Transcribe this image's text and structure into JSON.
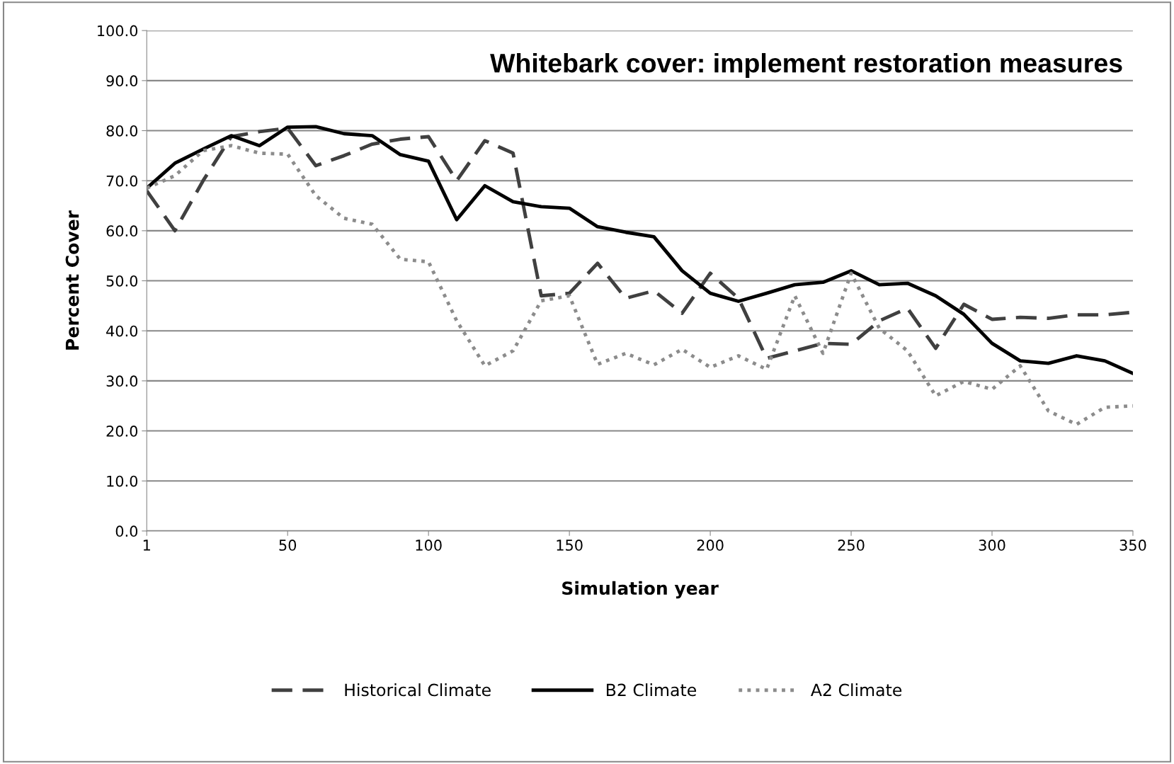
{
  "chart_data": {
    "type": "line",
    "title": "Whitebark cover: implement restoration measures",
    "xlabel": "Simulation year",
    "ylabel": "Percent Cover",
    "categories": [
      "1",
      null,
      null,
      null,
      null,
      "50",
      null,
      null,
      null,
      null,
      "100",
      null,
      null,
      null,
      null,
      "150",
      null,
      null,
      null,
      null,
      "200",
      null,
      null,
      null,
      null,
      "250",
      null,
      null,
      null,
      null,
      "300",
      null,
      null,
      null,
      null,
      "350"
    ],
    "ylim": [
      0,
      100
    ],
    "yticks": [
      {
        "value": 0,
        "label": "0.0"
      },
      {
        "value": 10,
        "label": "10.0"
      },
      {
        "value": 20,
        "label": "20.0"
      },
      {
        "value": 30,
        "label": "30.0"
      },
      {
        "value": 40,
        "label": "40.0"
      },
      {
        "value": 50,
        "label": "50.0"
      },
      {
        "value": 60,
        "label": "60.0"
      },
      {
        "value": 70,
        "label": "70.0"
      },
      {
        "value": 80,
        "label": "80.0"
      },
      {
        "value": 90,
        "label": "90.0"
      },
      {
        "value": 100,
        "label": "100.0"
      }
    ],
    "grid": "y",
    "legend": "bottom",
    "marker": "none",
    "series": [
      {
        "name": "Historical Climate",
        "color": "#404040",
        "line_style": "dashed",
        "values": [
          68,
          60,
          70,
          78.8,
          79.8,
          80.5,
          73,
          75,
          77.3,
          78.3,
          78.8,
          70,
          78,
          75.5,
          47,
          47.5,
          53.5,
          46.5,
          48,
          43.5,
          51.5,
          46.5,
          34.5,
          36,
          37.5,
          37.3,
          42,
          44.5,
          36.5,
          45.3,
          42.3,
          42.7,
          42.5,
          43.2,
          43.2,
          43.7
        ]
      },
      {
        "name": "B2 Climate",
        "color": "#000000",
        "line_style": "solid",
        "values": [
          68.5,
          73.5,
          76.3,
          79,
          77,
          80.7,
          80.8,
          79.4,
          79,
          75.2,
          73.9,
          62.2,
          69,
          65.8,
          64.8,
          64.5,
          60.8,
          59.7,
          58.8,
          52,
          47.5,
          45.9,
          47.5,
          49.2,
          49.7,
          52,
          49.2,
          49.5,
          47,
          43.3,
          37.5,
          34,
          33.5,
          35,
          34,
          31.5
        ]
      },
      {
        "name": "A2 Climate",
        "color": "#8c8c8c",
        "line_style": "dotted",
        "values": [
          68.5,
          71,
          76,
          77,
          75.5,
          75.3,
          67,
          62.5,
          61.3,
          54.3,
          53.8,
          42,
          33,
          36,
          46,
          47,
          33.3,
          35.5,
          33.2,
          36.3,
          32.7,
          35,
          32.3,
          47,
          35.5,
          51.5,
          40.5,
          36,
          27,
          29.9,
          28.3,
          33,
          24,
          21.3,
          24.7,
          25
        ]
      }
    ]
  }
}
